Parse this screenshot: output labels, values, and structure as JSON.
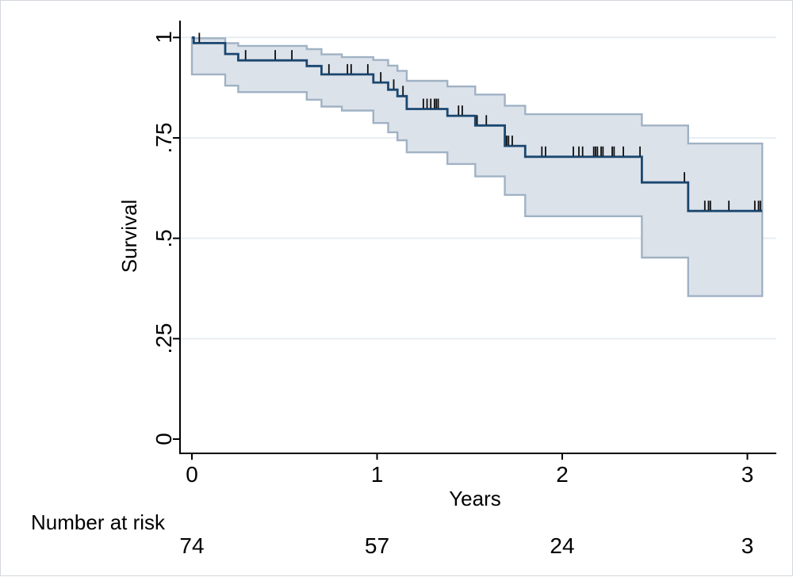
{
  "figure": {
    "kind": "Kaplan-Meier survival estimate with 95% confidence band",
    "background": "#ffffff",
    "border_color": "#d3d9de"
  },
  "chart_data": {
    "type": "line",
    "subtype": "kaplan_meier_step",
    "title": "",
    "xlabel": "Years",
    "ylabel": "Survival",
    "xlim": [
      0,
      3.16
    ],
    "ylim": [
      0,
      1.04
    ],
    "grid": "horizontal-only",
    "legend_position": "none",
    "x_ticks": {
      "values": [
        0,
        1,
        2,
        3
      ],
      "labels": [
        "0",
        "1",
        "2",
        "3"
      ]
    },
    "y_ticks": {
      "values": [
        0,
        0.25,
        0.5,
        0.75,
        1
      ],
      "labels": [
        "0",
        ".25",
        ".5",
        ".75",
        "1"
      ]
    },
    "grid_y_values": [
      0.25,
      0.5,
      0.75,
      1
    ],
    "t_end": 3.08,
    "survival_steps": [
      [
        0,
        1.0
      ],
      [
        0.01,
        0.986
      ],
      [
        0.18,
        0.959
      ],
      [
        0.25,
        0.943
      ],
      [
        0.62,
        0.929
      ],
      [
        0.7,
        0.908
      ],
      [
        0.98,
        0.888
      ],
      [
        1.06,
        0.87
      ],
      [
        1.11,
        0.854
      ],
      [
        1.16,
        0.822
      ],
      [
        1.38,
        0.805
      ],
      [
        1.53,
        0.781
      ],
      [
        1.69,
        0.73
      ],
      [
        1.8,
        0.703
      ],
      [
        2.43,
        0.639
      ],
      [
        2.68,
        0.568
      ]
    ],
    "ci_upper_steps": [
      [
        0,
        0.999
      ],
      [
        0.01,
        0.998
      ],
      [
        0.18,
        0.986
      ],
      [
        0.25,
        0.979
      ],
      [
        0.62,
        0.971
      ],
      [
        0.7,
        0.958
      ],
      [
        0.81,
        0.951
      ],
      [
        0.98,
        0.944
      ],
      [
        1.06,
        0.93
      ],
      [
        1.11,
        0.917
      ],
      [
        1.16,
        0.892
      ],
      [
        1.38,
        0.878
      ],
      [
        1.53,
        0.858
      ],
      [
        1.69,
        0.83
      ],
      [
        1.8,
        0.809
      ],
      [
        2.43,
        0.781
      ],
      [
        2.68,
        0.736
      ]
    ],
    "ci_lower_steps": [
      [
        0,
        0.908
      ],
      [
        0.01,
        0.908
      ],
      [
        0.18,
        0.88
      ],
      [
        0.25,
        0.864
      ],
      [
        0.62,
        0.845
      ],
      [
        0.7,
        0.828
      ],
      [
        0.81,
        0.818
      ],
      [
        0.98,
        0.787
      ],
      [
        1.06,
        0.764
      ],
      [
        1.11,
        0.744
      ],
      [
        1.16,
        0.714
      ],
      [
        1.38,
        0.685
      ],
      [
        1.53,
        0.654
      ],
      [
        1.69,
        0.608
      ],
      [
        1.8,
        0.555
      ],
      [
        2.43,
        0.452
      ],
      [
        2.68,
        0.356
      ]
    ],
    "censor_marks": [
      [
        0.04,
        0.986
      ],
      [
        0.29,
        0.943
      ],
      [
        0.45,
        0.943
      ],
      [
        0.54,
        0.943
      ],
      [
        0.74,
        0.908
      ],
      [
        0.84,
        0.908
      ],
      [
        0.86,
        0.908
      ],
      [
        0.95,
        0.908
      ],
      [
        1.02,
        0.888
      ],
      [
        1.09,
        0.87
      ],
      [
        1.14,
        0.854
      ],
      [
        1.25,
        0.822
      ],
      [
        1.27,
        0.822
      ],
      [
        1.29,
        0.822
      ],
      [
        1.31,
        0.822
      ],
      [
        1.32,
        0.822
      ],
      [
        1.33,
        0.822
      ],
      [
        1.44,
        0.805
      ],
      [
        1.46,
        0.805
      ],
      [
        1.54,
        0.781
      ],
      [
        1.59,
        0.781
      ],
      [
        1.7,
        0.73
      ],
      [
        1.71,
        0.73
      ],
      [
        1.73,
        0.73
      ],
      [
        1.89,
        0.703
      ],
      [
        1.91,
        0.703
      ],
      [
        2.06,
        0.703
      ],
      [
        2.09,
        0.703
      ],
      [
        2.11,
        0.703
      ],
      [
        2.17,
        0.703
      ],
      [
        2.18,
        0.703
      ],
      [
        2.19,
        0.703
      ],
      [
        2.21,
        0.703
      ],
      [
        2.22,
        0.703
      ],
      [
        2.27,
        0.703
      ],
      [
        2.28,
        0.703
      ],
      [
        2.33,
        0.703
      ],
      [
        2.42,
        0.703
      ],
      [
        2.66,
        0.639
      ],
      [
        2.77,
        0.568
      ],
      [
        2.79,
        0.568
      ],
      [
        2.8,
        0.568
      ],
      [
        2.9,
        0.568
      ],
      [
        3.04,
        0.568
      ],
      [
        3.06,
        0.568
      ],
      [
        3.07,
        0.568
      ]
    ],
    "risk_table": {
      "label": "Number at risk",
      "times": [
        0,
        1,
        2,
        3
      ],
      "counts": [
        "74",
        "57",
        "24",
        "3"
      ]
    },
    "colors": {
      "line": "#1a476f",
      "ci_fill": "#dce2ea",
      "ci_edge": "#a0b2c4",
      "grid": "#e7eef4",
      "axis": "#000000",
      "censor": "#0d0d0d",
      "text": "#000000"
    }
  }
}
